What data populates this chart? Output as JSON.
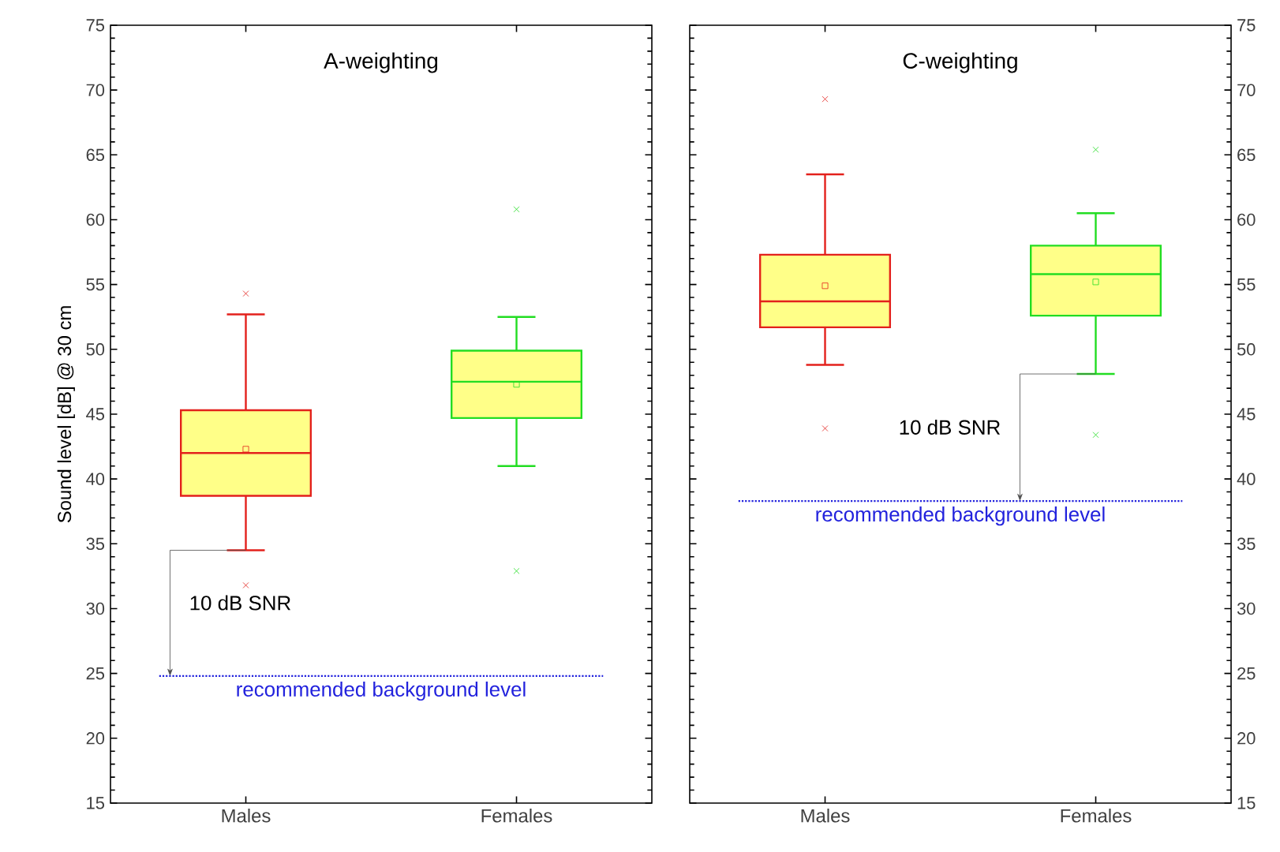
{
  "chart_data": [
    {
      "type": "box",
      "title": "A-weighting",
      "ylabel": "Sound level [dB] @ 30 cm",
      "categories": [
        "Males",
        "Females"
      ],
      "colors": [
        "#e3211c",
        "#22dd22"
      ],
      "boxes": [
        {
          "low": 34.5,
          "q1": 38.7,
          "median": 42.0,
          "q3": 45.3,
          "high": 52.7,
          "mean": 42.3,
          "outliers": [
            54.3,
            31.8
          ]
        },
        {
          "low": 41.0,
          "q1": 44.7,
          "median": 47.5,
          "q3": 49.9,
          "high": 52.5,
          "mean": 47.3,
          "outliers": [
            60.8,
            32.9
          ]
        }
      ],
      "ylim": [
        15,
        75
      ],
      "yticks": [
        15,
        20,
        25,
        30,
        35,
        40,
        45,
        50,
        55,
        60,
        65,
        70,
        75
      ],
      "ref_lines": [
        {
          "axis": "y",
          "value": 24.8,
          "label": "recommended background level",
          "color": "#2222dd",
          "line_style": "dotted"
        }
      ],
      "annotations": [
        "10 dB SNR"
      ]
    },
    {
      "type": "box",
      "title": "C-weighting",
      "categories": [
        "Males",
        "Females"
      ],
      "colors": [
        "#e3211c",
        "#22dd22"
      ],
      "boxes": [
        {
          "low": 48.8,
          "q1": 51.7,
          "median": 53.7,
          "q3": 57.3,
          "high": 63.5,
          "mean": 54.9,
          "outliers": [
            69.3,
            43.9
          ]
        },
        {
          "low": 48.1,
          "q1": 52.6,
          "median": 55.8,
          "q3": 58.0,
          "high": 60.5,
          "mean": 55.2,
          "outliers": [
            65.4,
            43.4
          ]
        }
      ],
      "ylim": [
        15,
        75
      ],
      "yticks": [
        15,
        20,
        25,
        30,
        35,
        40,
        45,
        50,
        55,
        60,
        65,
        70,
        75
      ],
      "ref_lines": [
        {
          "axis": "y",
          "value": 38.3,
          "label": "recommended background level",
          "color": "#2222dd",
          "line_style": "dotted"
        }
      ],
      "annotations": [
        "10 dB SNR"
      ]
    }
  ]
}
